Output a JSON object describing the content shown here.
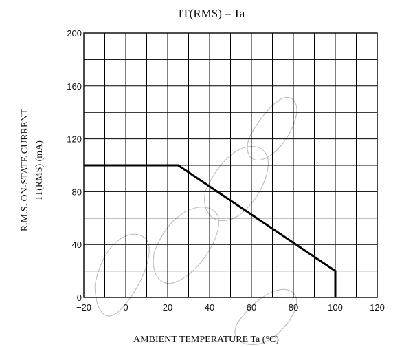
{
  "chart_data": {
    "type": "line",
    "title": "IT(RMS) – Ta",
    "xlabel": "AMBIENT TEMPERATURE Ta (°C)",
    "ylabel_line1": "R.M.S. ON-STATE CURRENT",
    "ylabel_line2": "IT(RMS) (mA)",
    "x_ticks": [
      "−20",
      "0",
      "20",
      "40",
      "60",
      "80",
      "100",
      "120"
    ],
    "y_ticks": [
      "0",
      "40",
      "80",
      "120",
      "160",
      "200"
    ],
    "xlim": [
      -20,
      120
    ],
    "ylim": [
      0,
      200
    ],
    "grid": true,
    "series": [
      {
        "x": [
          -20,
          25,
          100,
          100
        ],
        "y": [
          100,
          100,
          20,
          0
        ]
      }
    ]
  }
}
